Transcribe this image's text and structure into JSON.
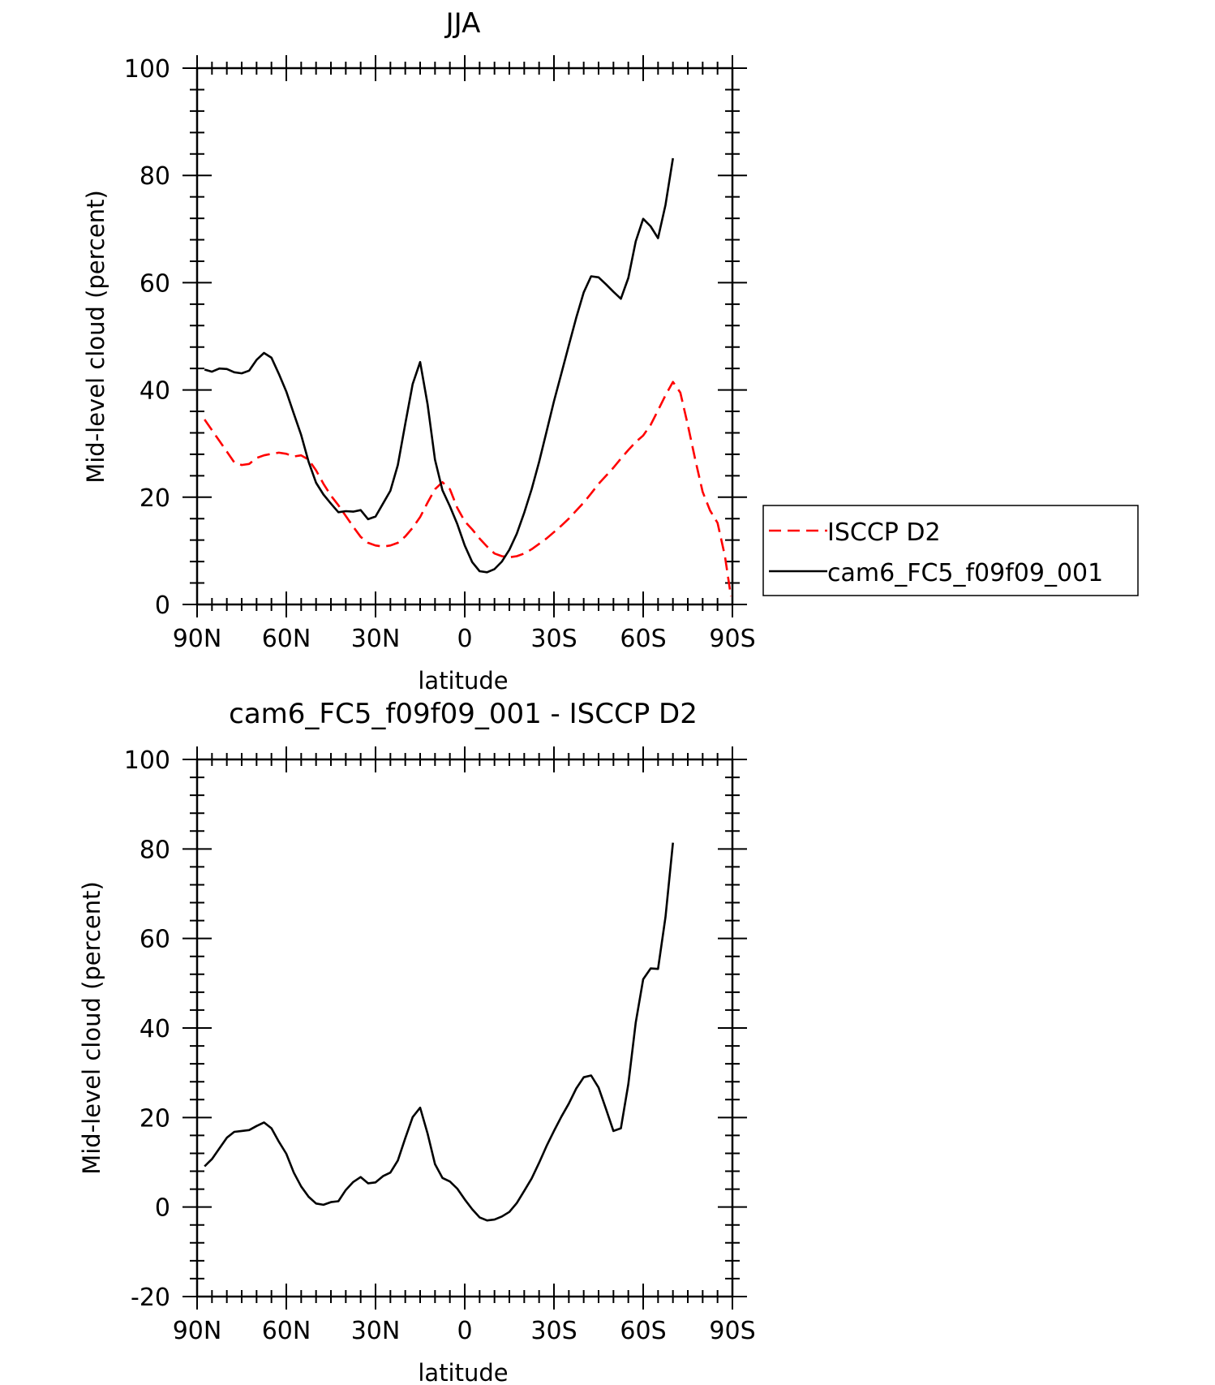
{
  "chart_data": [
    {
      "type": "line",
      "title": "JJA",
      "xlabel": "latitude",
      "ylabel": "Mid-level cloud (percent)",
      "xlim": [
        90,
        -90
      ],
      "ylim": [
        0,
        100
      ],
      "x_ticks": [
        90,
        60,
        30,
        0,
        -30,
        -60,
        -90
      ],
      "x_tick_labels": [
        "90N",
        "60N",
        "30N",
        "0",
        "30S",
        "60S",
        "90S"
      ],
      "y_ticks": [
        0,
        20,
        40,
        60,
        80,
        100
      ],
      "y_tick_labels": [
        "0",
        "20",
        "40",
        "60",
        "80",
        "100"
      ],
      "legend_position": "right",
      "series": [
        {
          "name": "ISCCP D2",
          "color": "#ff0000",
          "dash": "dashed",
          "points": [
            [
              87.5,
              34.5
            ],
            [
              85,
              32.5
            ],
            [
              82.5,
              30.5
            ],
            [
              80,
              28.5
            ],
            [
              77.5,
              26.5
            ],
            [
              75,
              26
            ],
            [
              72.5,
              26.2
            ],
            [
              70,
              27.3
            ],
            [
              67.5,
              27.8
            ],
            [
              65,
              28.1
            ],
            [
              62.5,
              28.3
            ],
            [
              60,
              28.1
            ],
            [
              57.5,
              27.6
            ],
            [
              55,
              27.8
            ],
            [
              52.5,
              27
            ],
            [
              50,
              25
            ],
            [
              47.5,
              22.5
            ],
            [
              45,
              20.3
            ],
            [
              42.5,
              18.5
            ],
            [
              40,
              16.5
            ],
            [
              37.5,
              14.5
            ],
            [
              35,
              12.6
            ],
            [
              32.5,
              11.5
            ],
            [
              30,
              11
            ],
            [
              27.5,
              10.8
            ],
            [
              25,
              11
            ],
            [
              22.5,
              11.5
            ],
            [
              20,
              12.7
            ],
            [
              17.5,
              14.3
            ],
            [
              15,
              16.3
            ],
            [
              12.5,
              19
            ],
            [
              10,
              21.5
            ],
            [
              7.5,
              22.8
            ],
            [
              5,
              21.5
            ],
            [
              2.5,
              18
            ],
            [
              0,
              15.5
            ],
            [
              -2.5,
              14
            ],
            [
              -5,
              12.3
            ],
            [
              -7.5,
              10.8
            ],
            [
              -10,
              9.5
            ],
            [
              -12.5,
              9
            ],
            [
              -15,
              8.8
            ],
            [
              -17.5,
              9
            ],
            [
              -20,
              9.5
            ],
            [
              -22.5,
              10.3
            ],
            [
              -25,
              11.3
            ],
            [
              -27.5,
              12.3
            ],
            [
              -30,
              13.5
            ],
            [
              -32.5,
              14.7
            ],
            [
              -35,
              16
            ],
            [
              -37.5,
              17.5
            ],
            [
              -40,
              19
            ],
            [
              -42.5,
              20.7
            ],
            [
              -45,
              22.5
            ],
            [
              -47.5,
              24
            ],
            [
              -50,
              25.5
            ],
            [
              -52.5,
              27.2
            ],
            [
              -55,
              28.8
            ],
            [
              -57.5,
              30.3
            ],
            [
              -60,
              31.5
            ],
            [
              -62.5,
              33.5
            ],
            [
              -65,
              36.2
            ],
            [
              -67.5,
              39
            ],
            [
              -70,
              41.5
            ],
            [
              -72.5,
              39.5
            ],
            [
              -75,
              33.5
            ],
            [
              -77.5,
              27
            ],
            [
              -80,
              21
            ],
            [
              -82.5,
              17.5
            ],
            [
              -85,
              15.2
            ],
            [
              -87.5,
              9
            ],
            [
              -89.5,
              1.5
            ]
          ]
        },
        {
          "name": "cam6_FC5_f09f09_001",
          "color": "#000000",
          "dash": "solid",
          "points": [
            [
              87.5,
              43.8
            ],
            [
              85,
              43.4
            ],
            [
              82.5,
              44
            ],
            [
              80,
              43.9
            ],
            [
              77.5,
              43.3
            ],
            [
              75,
              43.1
            ],
            [
              72.5,
              43.6
            ],
            [
              70,
              45.6
            ],
            [
              67.5,
              46.9
            ],
            [
              65,
              46
            ],
            [
              62.5,
              43
            ],
            [
              60,
              39.7
            ],
            [
              57.5,
              35.6
            ],
            [
              55,
              31.6
            ],
            [
              52.5,
              26.6
            ],
            [
              50,
              22.7
            ],
            [
              47.5,
              20.5
            ],
            [
              45,
              18.8
            ],
            [
              42.5,
              17.2
            ],
            [
              40,
              17.4
            ],
            [
              37.5,
              17.3
            ],
            [
              35,
              17.6
            ],
            [
              32.5,
              15.9
            ],
            [
              30,
              16.4
            ],
            [
              27.5,
              18.8
            ],
            [
              25,
              21.2
            ],
            [
              22.5,
              26
            ],
            [
              20,
              33.7
            ],
            [
              17.5,
              41.1
            ],
            [
              15,
              45.2
            ],
            [
              12.5,
              37.3
            ],
            [
              10,
              27
            ],
            [
              7.5,
              21.3
            ],
            [
              5,
              18.3
            ],
            [
              2.5,
              15
            ],
            [
              0,
              11
            ],
            [
              -2.5,
              7.9
            ],
            [
              -5,
              6.2
            ],
            [
              -7.5,
              6
            ],
            [
              -10,
              6.6
            ],
            [
              -12.5,
              8
            ],
            [
              -15,
              10.2
            ],
            [
              -17.5,
              13.2
            ],
            [
              -20,
              17.1
            ],
            [
              -22.5,
              21.5
            ],
            [
              -25,
              26.6
            ],
            [
              -27.5,
              32.2
            ],
            [
              -30,
              37.9
            ],
            [
              -32.5,
              43.1
            ],
            [
              -35,
              48.3
            ],
            [
              -37.5,
              53.5
            ],
            [
              -40,
              58.2
            ],
            [
              -42.5,
              61.2
            ],
            [
              -45,
              61
            ],
            [
              -47.5,
              59.7
            ],
            [
              -50,
              58.3
            ],
            [
              -52.5,
              57
            ],
            [
              -55,
              60.9
            ],
            [
              -57.5,
              67.7
            ],
            [
              -60,
              71.9
            ],
            [
              -62.5,
              70.5
            ],
            [
              -65,
              68.3
            ],
            [
              -67.5,
              74.5
            ],
            [
              -70,
              83.2
            ]
          ]
        }
      ]
    },
    {
      "type": "line",
      "title": "cam6_FC5_f09f09_001 - ISCCP D2",
      "xlabel": "latitude",
      "ylabel": "Mid-level cloud (percent)",
      "xlim": [
        90,
        -90
      ],
      "ylim": [
        -20,
        100
      ],
      "x_ticks": [
        90,
        60,
        30,
        0,
        -30,
        -60,
        -90
      ],
      "x_tick_labels": [
        "90N",
        "60N",
        "30N",
        "0",
        "30S",
        "60S",
        "90S"
      ],
      "y_ticks": [
        -20,
        0,
        20,
        40,
        60,
        80,
        100
      ],
      "y_tick_labels": [
        "-20",
        "0",
        "20",
        "40",
        "60",
        "80",
        "100"
      ],
      "series": [
        {
          "color": "#000000",
          "dash": "solid",
          "points": [
            [
              87.5,
              9.1
            ],
            [
              85,
              10.7
            ],
            [
              82.5,
              13.1
            ],
            [
              80,
              15.5
            ],
            [
              77.5,
              16.8
            ],
            [
              75,
              17
            ],
            [
              72.5,
              17.2
            ],
            [
              70,
              18.1
            ],
            [
              67.5,
              18.9
            ],
            [
              65,
              17.6
            ],
            [
              62.5,
              14.6
            ],
            [
              60,
              11.9
            ],
            [
              57.5,
              7.7
            ],
            [
              55,
              4.6
            ],
            [
              52.5,
              2.3
            ],
            [
              50,
              0.8
            ],
            [
              47.5,
              0.5
            ],
            [
              45,
              1.1
            ],
            [
              42.5,
              1.3
            ],
            [
              40,
              3.8
            ],
            [
              37.5,
              5.6
            ],
            [
              35,
              6.7
            ],
            [
              32.5,
              5.3
            ],
            [
              30,
              5.5
            ],
            [
              27.5,
              6.9
            ],
            [
              25,
              7.7
            ],
            [
              22.5,
              10.4
            ],
            [
              20,
              15.4
            ],
            [
              17.5,
              20.1
            ],
            [
              15,
              22.2
            ],
            [
              12.5,
              16.4
            ],
            [
              10,
              9.6
            ],
            [
              7.5,
              6.5
            ],
            [
              5,
              5.7
            ],
            [
              2.5,
              4.1
            ],
            [
              0,
              1.7
            ],
            [
              -2.5,
              -0.5
            ],
            [
              -5,
              -2.3
            ],
            [
              -7.5,
              -3
            ],
            [
              -10,
              -2.8
            ],
            [
              -12.5,
              -2.1
            ],
            [
              -15,
              -1.1
            ],
            [
              -17.5,
              0.9
            ],
            [
              -20,
              3.6
            ],
            [
              -22.5,
              6.4
            ],
            [
              -25,
              9.9
            ],
            [
              -27.5,
              13.6
            ],
            [
              -30,
              17
            ],
            [
              -32.5,
              20.2
            ],
            [
              -35,
              23.1
            ],
            [
              -37.5,
              26.5
            ],
            [
              -40,
              29
            ],
            [
              -42.5,
              29.4
            ],
            [
              -45,
              26.7
            ],
            [
              -47.5,
              21.9
            ],
            [
              -50,
              17
            ],
            [
              -52.5,
              17.6
            ],
            [
              -55,
              27.5
            ],
            [
              -57.5,
              41.2
            ],
            [
              -60,
              50.9
            ],
            [
              -62.5,
              53.3
            ],
            [
              -65,
              53.2
            ],
            [
              -67.5,
              64.8
            ],
            [
              -70,
              81.4
            ]
          ]
        }
      ]
    }
  ]
}
